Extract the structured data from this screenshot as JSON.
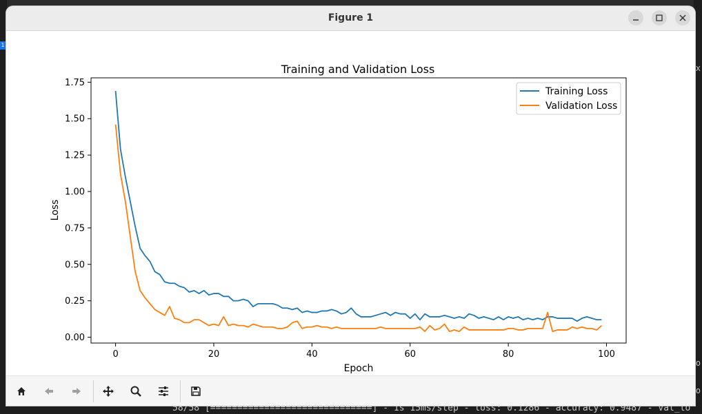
{
  "window": {
    "title": "Figure 1"
  },
  "toolbar": {
    "buttons": [
      "home-icon",
      "back-arrow-icon",
      "forward-arrow-icon",
      "pan-icon",
      "zoom-icon",
      "configure-subplots-icon",
      "save-icon"
    ]
  },
  "background_terminal": {
    "bottom_text": "58/58 [==============================] - 1s 15ms/step - loss: 0.1286 - accuracy: 0.9487 - val_lo",
    "badge": "1",
    "right_glyphs": [
      "x",
      "o",
      "o"
    ]
  },
  "chart_data": {
    "type": "line",
    "title": "Training and Validation Loss",
    "xlabel": "Epoch",
    "ylabel": "Loss",
    "xlim": [
      -5,
      104
    ],
    "ylim": [
      -0.04,
      1.78
    ],
    "xticks": [
      0,
      20,
      40,
      60,
      80,
      100
    ],
    "yticks": [
      0.0,
      0.25,
      0.5,
      0.75,
      1.0,
      1.25,
      1.5,
      1.75
    ],
    "ytick_labels": [
      "0.00",
      "0.25",
      "0.50",
      "0.75",
      "1.00",
      "1.25",
      "1.50",
      "1.75"
    ],
    "grid": false,
    "legend": "top-right",
    "series": [
      {
        "name": "Training Loss",
        "color": "#1f77b4",
        "values": [
          1.69,
          1.29,
          1.1,
          0.93,
          0.76,
          0.61,
          0.56,
          0.52,
          0.45,
          0.43,
          0.38,
          0.37,
          0.37,
          0.35,
          0.34,
          0.31,
          0.32,
          0.3,
          0.32,
          0.29,
          0.3,
          0.3,
          0.28,
          0.28,
          0.25,
          0.25,
          0.26,
          0.25,
          0.21,
          0.23,
          0.23,
          0.23,
          0.23,
          0.22,
          0.2,
          0.2,
          0.19,
          0.2,
          0.17,
          0.18,
          0.17,
          0.17,
          0.18,
          0.18,
          0.19,
          0.18,
          0.16,
          0.17,
          0.2,
          0.16,
          0.14,
          0.14,
          0.14,
          0.15,
          0.16,
          0.17,
          0.15,
          0.17,
          0.16,
          0.16,
          0.13,
          0.16,
          0.12,
          0.16,
          0.14,
          0.14,
          0.14,
          0.15,
          0.14,
          0.13,
          0.14,
          0.13,
          0.16,
          0.15,
          0.13,
          0.14,
          0.13,
          0.12,
          0.14,
          0.12,
          0.14,
          0.13,
          0.14,
          0.12,
          0.13,
          0.12,
          0.13,
          0.12,
          0.14,
          0.14,
          0.13,
          0.13,
          0.13,
          0.13,
          0.11,
          0.13,
          0.14,
          0.13,
          0.12,
          0.12
        ]
      },
      {
        "name": "Validation Loss",
        "color": "#ff7f0e",
        "values": [
          1.46,
          1.12,
          0.93,
          0.69,
          0.45,
          0.32,
          0.27,
          0.23,
          0.19,
          0.17,
          0.15,
          0.21,
          0.13,
          0.12,
          0.1,
          0.1,
          0.12,
          0.12,
          0.1,
          0.08,
          0.09,
          0.08,
          0.14,
          0.08,
          0.09,
          0.08,
          0.08,
          0.07,
          0.09,
          0.08,
          0.07,
          0.07,
          0.07,
          0.06,
          0.06,
          0.07,
          0.1,
          0.11,
          0.06,
          0.07,
          0.07,
          0.08,
          0.07,
          0.07,
          0.06,
          0.07,
          0.06,
          0.06,
          0.06,
          0.06,
          0.06,
          0.06,
          0.06,
          0.06,
          0.07,
          0.06,
          0.06,
          0.06,
          0.06,
          0.06,
          0.06,
          0.06,
          0.07,
          0.04,
          0.08,
          0.05,
          0.06,
          0.09,
          0.04,
          0.05,
          0.04,
          0.07,
          0.05,
          0.05,
          0.05,
          0.05,
          0.05,
          0.05,
          0.05,
          0.05,
          0.06,
          0.06,
          0.05,
          0.05,
          0.06,
          0.06,
          0.06,
          0.06,
          0.17,
          0.04,
          0.05,
          0.05,
          0.05,
          0.07,
          0.06,
          0.07,
          0.06,
          0.06,
          0.05,
          0.08
        ]
      }
    ]
  }
}
